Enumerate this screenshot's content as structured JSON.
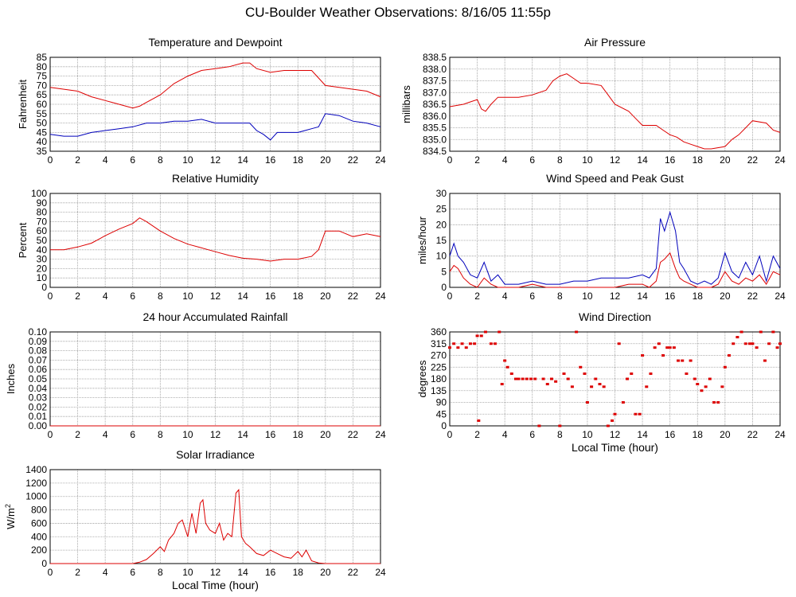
{
  "page": {
    "title": "CU-Boulder Weather Observations: 8/16/05 11:55p"
  },
  "colors": {
    "red": "#dd0000",
    "blue": "#0000bb",
    "grid": "#999999",
    "axis": "#000000"
  },
  "chart_data": [
    {
      "id": "temp",
      "type": "line",
      "title": "Temperature and Dewpoint",
      "ylabel": "Fahrenheit",
      "xlabel": "",
      "xlim": [
        0,
        24
      ],
      "ylim": [
        35,
        85
      ],
      "xticks": [
        0,
        2,
        4,
        6,
        8,
        10,
        12,
        14,
        16,
        18,
        20,
        22,
        24
      ],
      "yticks": [
        35,
        40,
        45,
        50,
        55,
        60,
        65,
        70,
        75,
        80,
        85
      ],
      "grid": true,
      "series": [
        {
          "color": "red",
          "x": [
            0,
            1,
            2,
            3,
            4,
            5,
            6,
            6.5,
            7,
            8,
            9,
            10,
            11,
            12,
            13,
            14,
            14.5,
            15,
            16,
            17,
            18,
            19,
            19.5,
            20,
            21,
            22,
            23,
            24
          ],
          "y": [
            69,
            68,
            67,
            64,
            62,
            60,
            58,
            59,
            61,
            65,
            71,
            75,
            78,
            79,
            80,
            82,
            82,
            79,
            77,
            78,
            78,
            78,
            74,
            70,
            69,
            68,
            67,
            64
          ]
        },
        {
          "color": "blue",
          "x": [
            0,
            1,
            2,
            3,
            4,
            5,
            6,
            7,
            8,
            9,
            10,
            11,
            12,
            13,
            14,
            14.5,
            15,
            15.5,
            16,
            16.5,
            17,
            18,
            19,
            19.5,
            20,
            21,
            22,
            23,
            24
          ],
          "y": [
            44,
            43,
            43,
            45,
            46,
            47,
            48,
            50,
            50,
            51,
            51,
            52,
            50,
            50,
            50,
            50,
            46,
            44,
            41,
            45,
            45,
            45,
            47,
            48,
            55,
            54,
            51,
            50,
            48
          ]
        }
      ]
    },
    {
      "id": "pressure",
      "type": "line",
      "title": "Air Pressure",
      "ylabel": "millibars",
      "xlabel": "",
      "xlim": [
        0,
        24
      ],
      "ylim": [
        834.5,
        838.5
      ],
      "xticks": [
        0,
        2,
        4,
        6,
        8,
        10,
        12,
        14,
        16,
        18,
        20,
        22,
        24
      ],
      "yticks": [
        "834.5",
        "835.0",
        "835.5",
        "836.0",
        "836.5",
        "837.0",
        "837.5",
        "838.0",
        "838.5"
      ],
      "grid": true,
      "series": [
        {
          "color": "red",
          "x": [
            0,
            1,
            1.5,
            2,
            2.3,
            2.6,
            3,
            3.5,
            4,
            5,
            6,
            7,
            7.5,
            8,
            8.5,
            9,
            9.5,
            10,
            11,
            11.5,
            12,
            13,
            13.5,
            14,
            15,
            15.5,
            16,
            16.5,
            17,
            17.5,
            18,
            18.5,
            19,
            20,
            20.5,
            21,
            21.5,
            22,
            23,
            23.5,
            24
          ],
          "y": [
            836.4,
            836.5,
            836.6,
            836.7,
            836.3,
            836.2,
            836.5,
            836.8,
            836.8,
            836.8,
            836.9,
            837.1,
            837.5,
            837.7,
            837.8,
            837.6,
            837.4,
            837.4,
            837.3,
            836.9,
            836.5,
            836.2,
            835.9,
            835.6,
            835.6,
            835.4,
            835.2,
            835.1,
            834.9,
            834.8,
            834.7,
            834.6,
            834.6,
            834.7,
            835.0,
            835.2,
            835.5,
            835.8,
            835.7,
            835.4,
            835.3
          ]
        }
      ]
    },
    {
      "id": "humidity",
      "type": "line",
      "title": "Relative Humidity",
      "ylabel": "Percent",
      "xlabel": "",
      "xlim": [
        0,
        24
      ],
      "ylim": [
        0,
        100
      ],
      "xticks": [
        0,
        2,
        4,
        6,
        8,
        10,
        12,
        14,
        16,
        18,
        20,
        22,
        24
      ],
      "yticks": [
        0,
        10,
        20,
        30,
        40,
        50,
        60,
        70,
        80,
        90,
        100
      ],
      "grid": true,
      "series": [
        {
          "color": "red",
          "x": [
            0,
            1,
            2,
            3,
            4,
            5,
            6,
            6.5,
            7,
            8,
            9,
            10,
            11,
            12,
            13,
            14,
            15,
            16,
            17,
            18,
            19,
            19.5,
            20,
            21,
            22,
            23,
            24
          ],
          "y": [
            40,
            40,
            43,
            47,
            55,
            62,
            68,
            74,
            70,
            60,
            52,
            46,
            42,
            38,
            34,
            31,
            30,
            28,
            30,
            30,
            33,
            40,
            60,
            60,
            54,
            57,
            54
          ]
        }
      ]
    },
    {
      "id": "wind",
      "type": "line",
      "title": "Wind Speed and Peak Gust",
      "ylabel": "miles/hour",
      "xlabel": "",
      "xlim": [
        0,
        24
      ],
      "ylim": [
        0,
        30
      ],
      "xticks": [
        0,
        2,
        4,
        6,
        8,
        10,
        12,
        14,
        16,
        18,
        20,
        22,
        24
      ],
      "yticks": [
        0,
        5,
        10,
        15,
        20,
        25,
        30
      ],
      "grid": true,
      "series": [
        {
          "color": "blue",
          "x": [
            0,
            0.3,
            0.6,
            1,
            1.5,
            2,
            2.5,
            3,
            3.5,
            4,
            5,
            6,
            7,
            8,
            9,
            10,
            11,
            12,
            13,
            14,
            14.5,
            15,
            15.3,
            15.6,
            16,
            16.4,
            16.7,
            17,
            17.5,
            18,
            18.5,
            19,
            19.5,
            20,
            20.5,
            21,
            21.5,
            22,
            22.5,
            23,
            23.5,
            24
          ],
          "y": [
            10,
            14,
            10,
            8,
            4,
            3,
            8,
            2,
            4,
            1,
            1,
            2,
            1,
            1,
            2,
            2,
            3,
            3,
            3,
            4,
            3,
            6,
            22,
            18,
            24,
            18,
            8,
            6,
            2,
            1,
            2,
            1,
            3,
            11,
            5,
            3,
            8,
            4,
            10,
            2,
            10,
            6
          ]
        },
        {
          "color": "red",
          "x": [
            0,
            0.3,
            0.6,
            1,
            1.5,
            2,
            2.5,
            3,
            3.5,
            4,
            5,
            6,
            7,
            8,
            9,
            10,
            11,
            12,
            13,
            14,
            14.5,
            15,
            15.3,
            15.6,
            16,
            16.4,
            16.7,
            17,
            17.5,
            18,
            18.5,
            19,
            19.5,
            20,
            20.5,
            21,
            21.5,
            22,
            22.5,
            23,
            23.5,
            24
          ],
          "y": [
            5,
            7,
            6,
            3,
            1,
            0,
            3,
            1,
            0,
            0,
            0,
            1,
            0,
            0,
            0,
            0,
            0,
            0,
            1,
            1,
            0,
            2,
            8,
            9,
            11,
            6,
            3,
            2,
            1,
            0,
            0,
            0,
            1,
            5,
            2,
            1,
            3,
            2,
            4,
            1,
            5,
            4
          ]
        }
      ]
    },
    {
      "id": "rain",
      "type": "line",
      "title": "24 hour Accumulated Rainfall",
      "ylabel": "Inches",
      "xlabel": "",
      "xlim": [
        0,
        24
      ],
      "ylim": [
        0,
        0.1
      ],
      "xticks": [
        0,
        2,
        4,
        6,
        8,
        10,
        12,
        14,
        16,
        18,
        20,
        22,
        24
      ],
      "yticks": [
        "0.00",
        "0.01",
        "0.02",
        "0.03",
        "0.04",
        "0.05",
        "0.06",
        "0.07",
        "0.08",
        "0.09",
        "0.10"
      ],
      "grid": true,
      "series": [
        {
          "color": "red",
          "x": [
            0,
            24
          ],
          "y": [
            0,
            0
          ]
        }
      ]
    },
    {
      "id": "direction",
      "type": "scatter",
      "title": "Wind Direction",
      "ylabel": "degrees",
      "xlabel": "Local Time (hour)",
      "xlim": [
        0,
        24
      ],
      "ylim": [
        0,
        360
      ],
      "xticks": [
        0,
        2,
        4,
        6,
        8,
        10,
        12,
        14,
        16,
        18,
        20,
        22,
        24
      ],
      "yticks": [
        0,
        45,
        90,
        135,
        180,
        225,
        270,
        315,
        360
      ],
      "grid": true,
      "series": [
        {
          "color": "red",
          "x": [
            0,
            0.3,
            0.6,
            0.9,
            1.2,
            1.5,
            1.8,
            2,
            2.1,
            2.3,
            2.6,
            3,
            3.3,
            3.6,
            3.8,
            4,
            4.2,
            4.5,
            4.8,
            5,
            5.3,
            5.6,
            5.9,
            6.2,
            6.5,
            6.8,
            7.1,
            7.4,
            7.7,
            8,
            8.3,
            8.6,
            8.9,
            9.2,
            9.5,
            9.8,
            10,
            10.3,
            10.6,
            10.9,
            11.2,
            11.5,
            11.8,
            12,
            12.3,
            12.6,
            12.9,
            13.2,
            13.5,
            13.8,
            14,
            14.3,
            14.6,
            14.9,
            15.2,
            15.5,
            15.8,
            16,
            16.3,
            16.6,
            16.9,
            17.2,
            17.5,
            17.8,
            18,
            18.3,
            18.6,
            18.9,
            19.2,
            19.5,
            19.8,
            20,
            20.3,
            20.6,
            20.9,
            21.2,
            21.5,
            21.8,
            22,
            22.3,
            22.6,
            22.9,
            23.2,
            23.5,
            23.8,
            24
          ],
          "y": [
            300,
            315,
            300,
            315,
            300,
            315,
            315,
            345,
            20,
            345,
            360,
            315,
            315,
            360,
            160,
            250,
            225,
            200,
            180,
            180,
            180,
            180,
            180,
            180,
            0,
            180,
            160,
            180,
            170,
            0,
            200,
            180,
            150,
            360,
            225,
            200,
            90,
            150,
            180,
            160,
            150,
            0,
            20,
            45,
            315,
            90,
            180,
            200,
            45,
            45,
            270,
            150,
            200,
            300,
            315,
            270,
            300,
            300,
            300,
            250,
            250,
            200,
            250,
            180,
            160,
            135,
            150,
            180,
            90,
            90,
            150,
            225,
            270,
            315,
            340,
            360,
            315,
            315,
            315,
            300,
            360,
            250,
            315,
            360,
            300,
            315
          ]
        }
      ]
    },
    {
      "id": "solar",
      "type": "line",
      "title": "Solar Irradiance",
      "ylabel": "W/m",
      "ylabel_sup": "2",
      "xlabel": "Local Time (hour)",
      "xlim": [
        0,
        24
      ],
      "ylim": [
        0,
        1400
      ],
      "xticks": [
        0,
        2,
        4,
        6,
        8,
        10,
        12,
        14,
        16,
        18,
        20,
        22,
        24
      ],
      "yticks": [
        0,
        200,
        400,
        600,
        800,
        1000,
        1200,
        1400
      ],
      "grid": true,
      "series": [
        {
          "color": "red",
          "x": [
            0,
            6,
            6.5,
            7,
            7.5,
            8,
            8.3,
            8.6,
            9,
            9.3,
            9.6,
            10,
            10.3,
            10.6,
            10.9,
            11.1,
            11.3,
            11.6,
            12,
            12.3,
            12.6,
            12.9,
            13.2,
            13.5,
            13.7,
            13.9,
            14.2,
            14.5,
            15,
            15.5,
            16,
            16.5,
            17,
            17.5,
            18,
            18.3,
            18.6,
            19,
            19.5,
            20,
            24
          ],
          "y": [
            0,
            0,
            20,
            60,
            150,
            250,
            180,
            350,
            450,
            600,
            650,
            400,
            750,
            450,
            900,
            950,
            600,
            500,
            450,
            600,
            350,
            450,
            400,
            1050,
            1100,
            400,
            300,
            250,
            150,
            120,
            200,
            150,
            100,
            80,
            180,
            100,
            200,
            40,
            10,
            0,
            0
          ]
        }
      ]
    }
  ]
}
